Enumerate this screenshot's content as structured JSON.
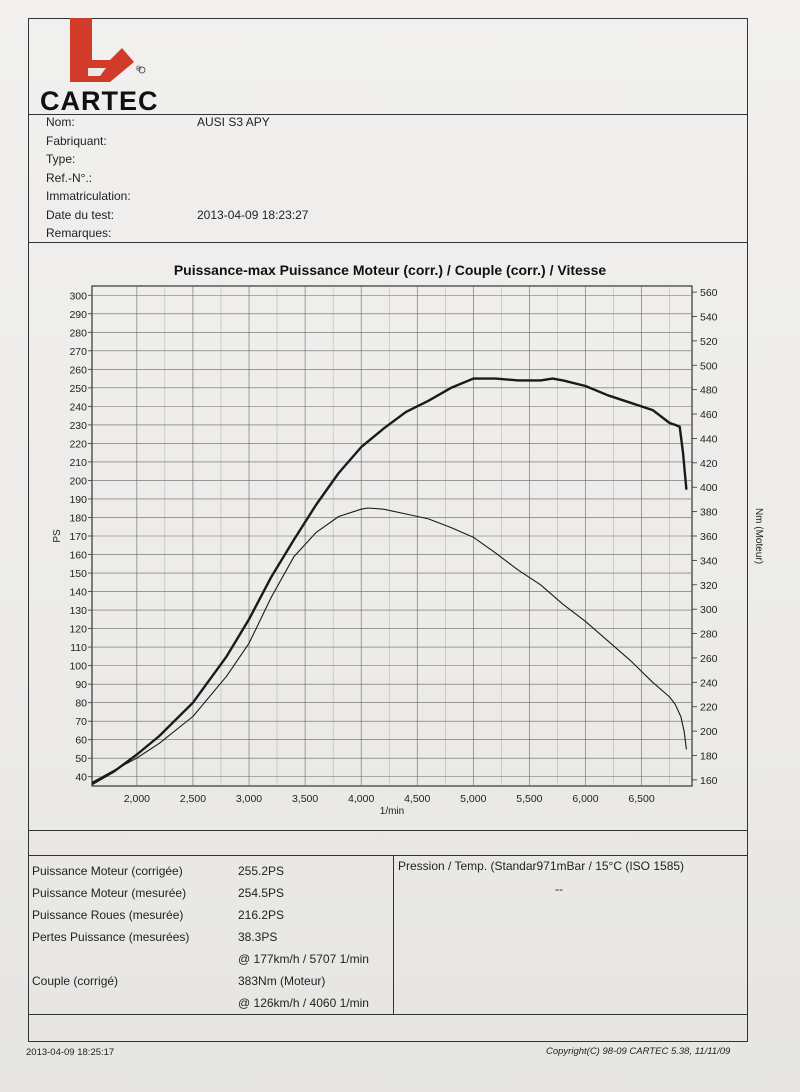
{
  "logo": {
    "brand": "CARTEC",
    "registered_mark": "®"
  },
  "header": {
    "fields": [
      {
        "label": "Nom:",
        "value": "AUSI S3 APY"
      },
      {
        "label": "Fabriquant:",
        "value": ""
      },
      {
        "label": "Type:",
        "value": ""
      },
      {
        "label": "Ref.-N°.:",
        "value": ""
      },
      {
        "label": "Immatriculation:",
        "value": ""
      },
      {
        "label": "Date du test:",
        "value": "2013-04-09 18:23:27"
      },
      {
        "label": "Remarques:",
        "value": ""
      }
    ]
  },
  "chart_data": {
    "type": "line",
    "title": "Puissance-max Puissance Moteur (corr.) / Couple (corr.) / Vitesse",
    "xlabel": "1/min",
    "ylabel_left": "PS",
    "ylabel_right": "Nm (Moteur)",
    "xlim": [
      1600,
      6950
    ],
    "ylim_left": [
      35,
      305
    ],
    "ylim_right": [
      155,
      565
    ],
    "x_ticks": [
      "2,000",
      "2,500",
      "3,000",
      "3,500",
      "4,000",
      "4,500",
      "5,000",
      "5,500",
      "6,000",
      "6,500"
    ],
    "y_left_ticks": [
      40,
      50,
      60,
      70,
      80,
      90,
      100,
      110,
      120,
      130,
      140,
      150,
      160,
      170,
      180,
      190,
      200,
      210,
      220,
      230,
      240,
      250,
      260,
      270,
      280,
      290,
      300
    ],
    "y_right_ticks": [
      160,
      180,
      200,
      220,
      240,
      260,
      280,
      300,
      320,
      340,
      360,
      380,
      400,
      420,
      440,
      460,
      480,
      500,
      520,
      540,
      560
    ],
    "grid": true,
    "series": [
      {
        "axis": "left",
        "style": "bold",
        "x": [
          1600,
          1800,
          2000,
          2200,
          2500,
          2800,
          3000,
          3200,
          3400,
          3600,
          3800,
          4000,
          4200,
          4400,
          4600,
          4800,
          5000,
          5200,
          5400,
          5600,
          5707,
          5800,
          6000,
          6200,
          6400,
          6600,
          6750,
          6800,
          6840,
          6870,
          6900
        ],
        "y": [
          36,
          43,
          52,
          62,
          80,
          105,
          125,
          148,
          168,
          187,
          204,
          218,
          228,
          237,
          243,
          250,
          255,
          255,
          254,
          254,
          255,
          254,
          251,
          246,
          242,
          238,
          231,
          230,
          229,
          215,
          195
        ]
      },
      {
        "axis": "right",
        "style": "thin",
        "x": [
          1600,
          1800,
          2000,
          2200,
          2500,
          2800,
          3000,
          3200,
          3400,
          3600,
          3800,
          4000,
          4060,
          4200,
          4400,
          4600,
          4800,
          5000,
          5200,
          5400,
          5600,
          5800,
          6000,
          6200,
          6400,
          6600,
          6750,
          6800,
          6850,
          6880,
          6900
        ],
        "y": [
          158,
          168,
          178,
          190,
          212,
          245,
          272,
          310,
          343,
          363,
          376,
          382,
          383,
          382,
          378,
          374,
          367,
          359,
          346,
          332,
          320,
          304,
          290,
          274,
          258,
          240,
          228,
          222,
          212,
          200,
          185
        ]
      }
    ]
  },
  "results": [
    {
      "label": "Puissance Moteur (corrigée)",
      "value": "255.2PS"
    },
    {
      "label": "Puissance Moteur (mesurée)",
      "value": "254.5PS"
    },
    {
      "label": "Puissance Roues (mesurée)",
      "value": "216.2PS"
    },
    {
      "label": "Pertes Puissance (mesurées)",
      "value": "38.3PS"
    },
    {
      "label": "",
      "value": "@ 177km/h / 5707 1/min"
    },
    {
      "label": "Couple (corrigé)",
      "value": "383Nm (Moteur)"
    },
    {
      "label": "",
      "value": "@ 126km/h / 4060 1/min"
    }
  ],
  "conditions": {
    "label": "Pression / Temp. (Standar971mBar / 15°C   (ISO 1585)",
    "value": "--"
  },
  "footer": {
    "printed": "2013-04-09 18:25:17",
    "copyright": "Copyright(C) 98-09 CARTEC 5.38, 11/11/09"
  },
  "colors": {
    "logo_red": "#d23a2a",
    "ink": "#1a1a1a",
    "grid": "#555555"
  }
}
